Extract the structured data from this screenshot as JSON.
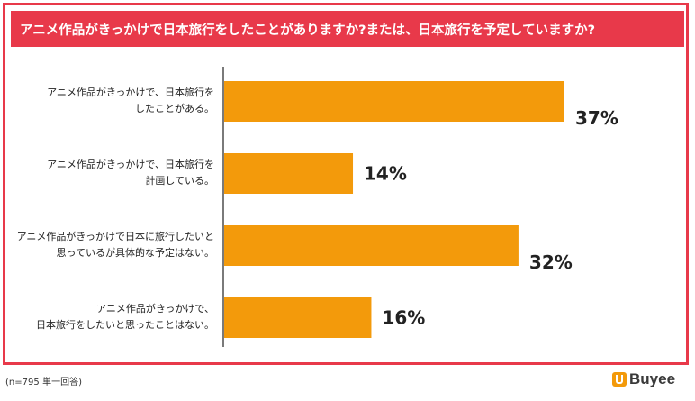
{
  "title": "アニメ作品がきっかけで日本旅行をしたことがありますか?または、日本旅行を予定していますか?",
  "footnote": "(n=795|単一回答)",
  "brand": "Buyee",
  "colors": {
    "frame": "#e8394a",
    "bar": "#f39a0b"
  },
  "chart_data": {
    "type": "bar",
    "orientation": "horizontal",
    "categories": [
      [
        "アニメ作品がきっかけで、日本旅行を",
        "したことがある。"
      ],
      [
        "アニメ作品がきっかけで、日本旅行を",
        "計画している。"
      ],
      [
        "アニメ作品がきっかけで日本に旅行したいと",
        "思っているが具体的な予定はない。"
      ],
      [
        "アニメ作品がきっかけで、",
        "日本旅行をしたいと思ったことはない。"
      ]
    ],
    "values": [
      37,
      14,
      32,
      16
    ],
    "value_labels": [
      "37%",
      "14%",
      "32%",
      "16%"
    ],
    "xlim": [
      0,
      37
    ],
    "grid": false
  }
}
